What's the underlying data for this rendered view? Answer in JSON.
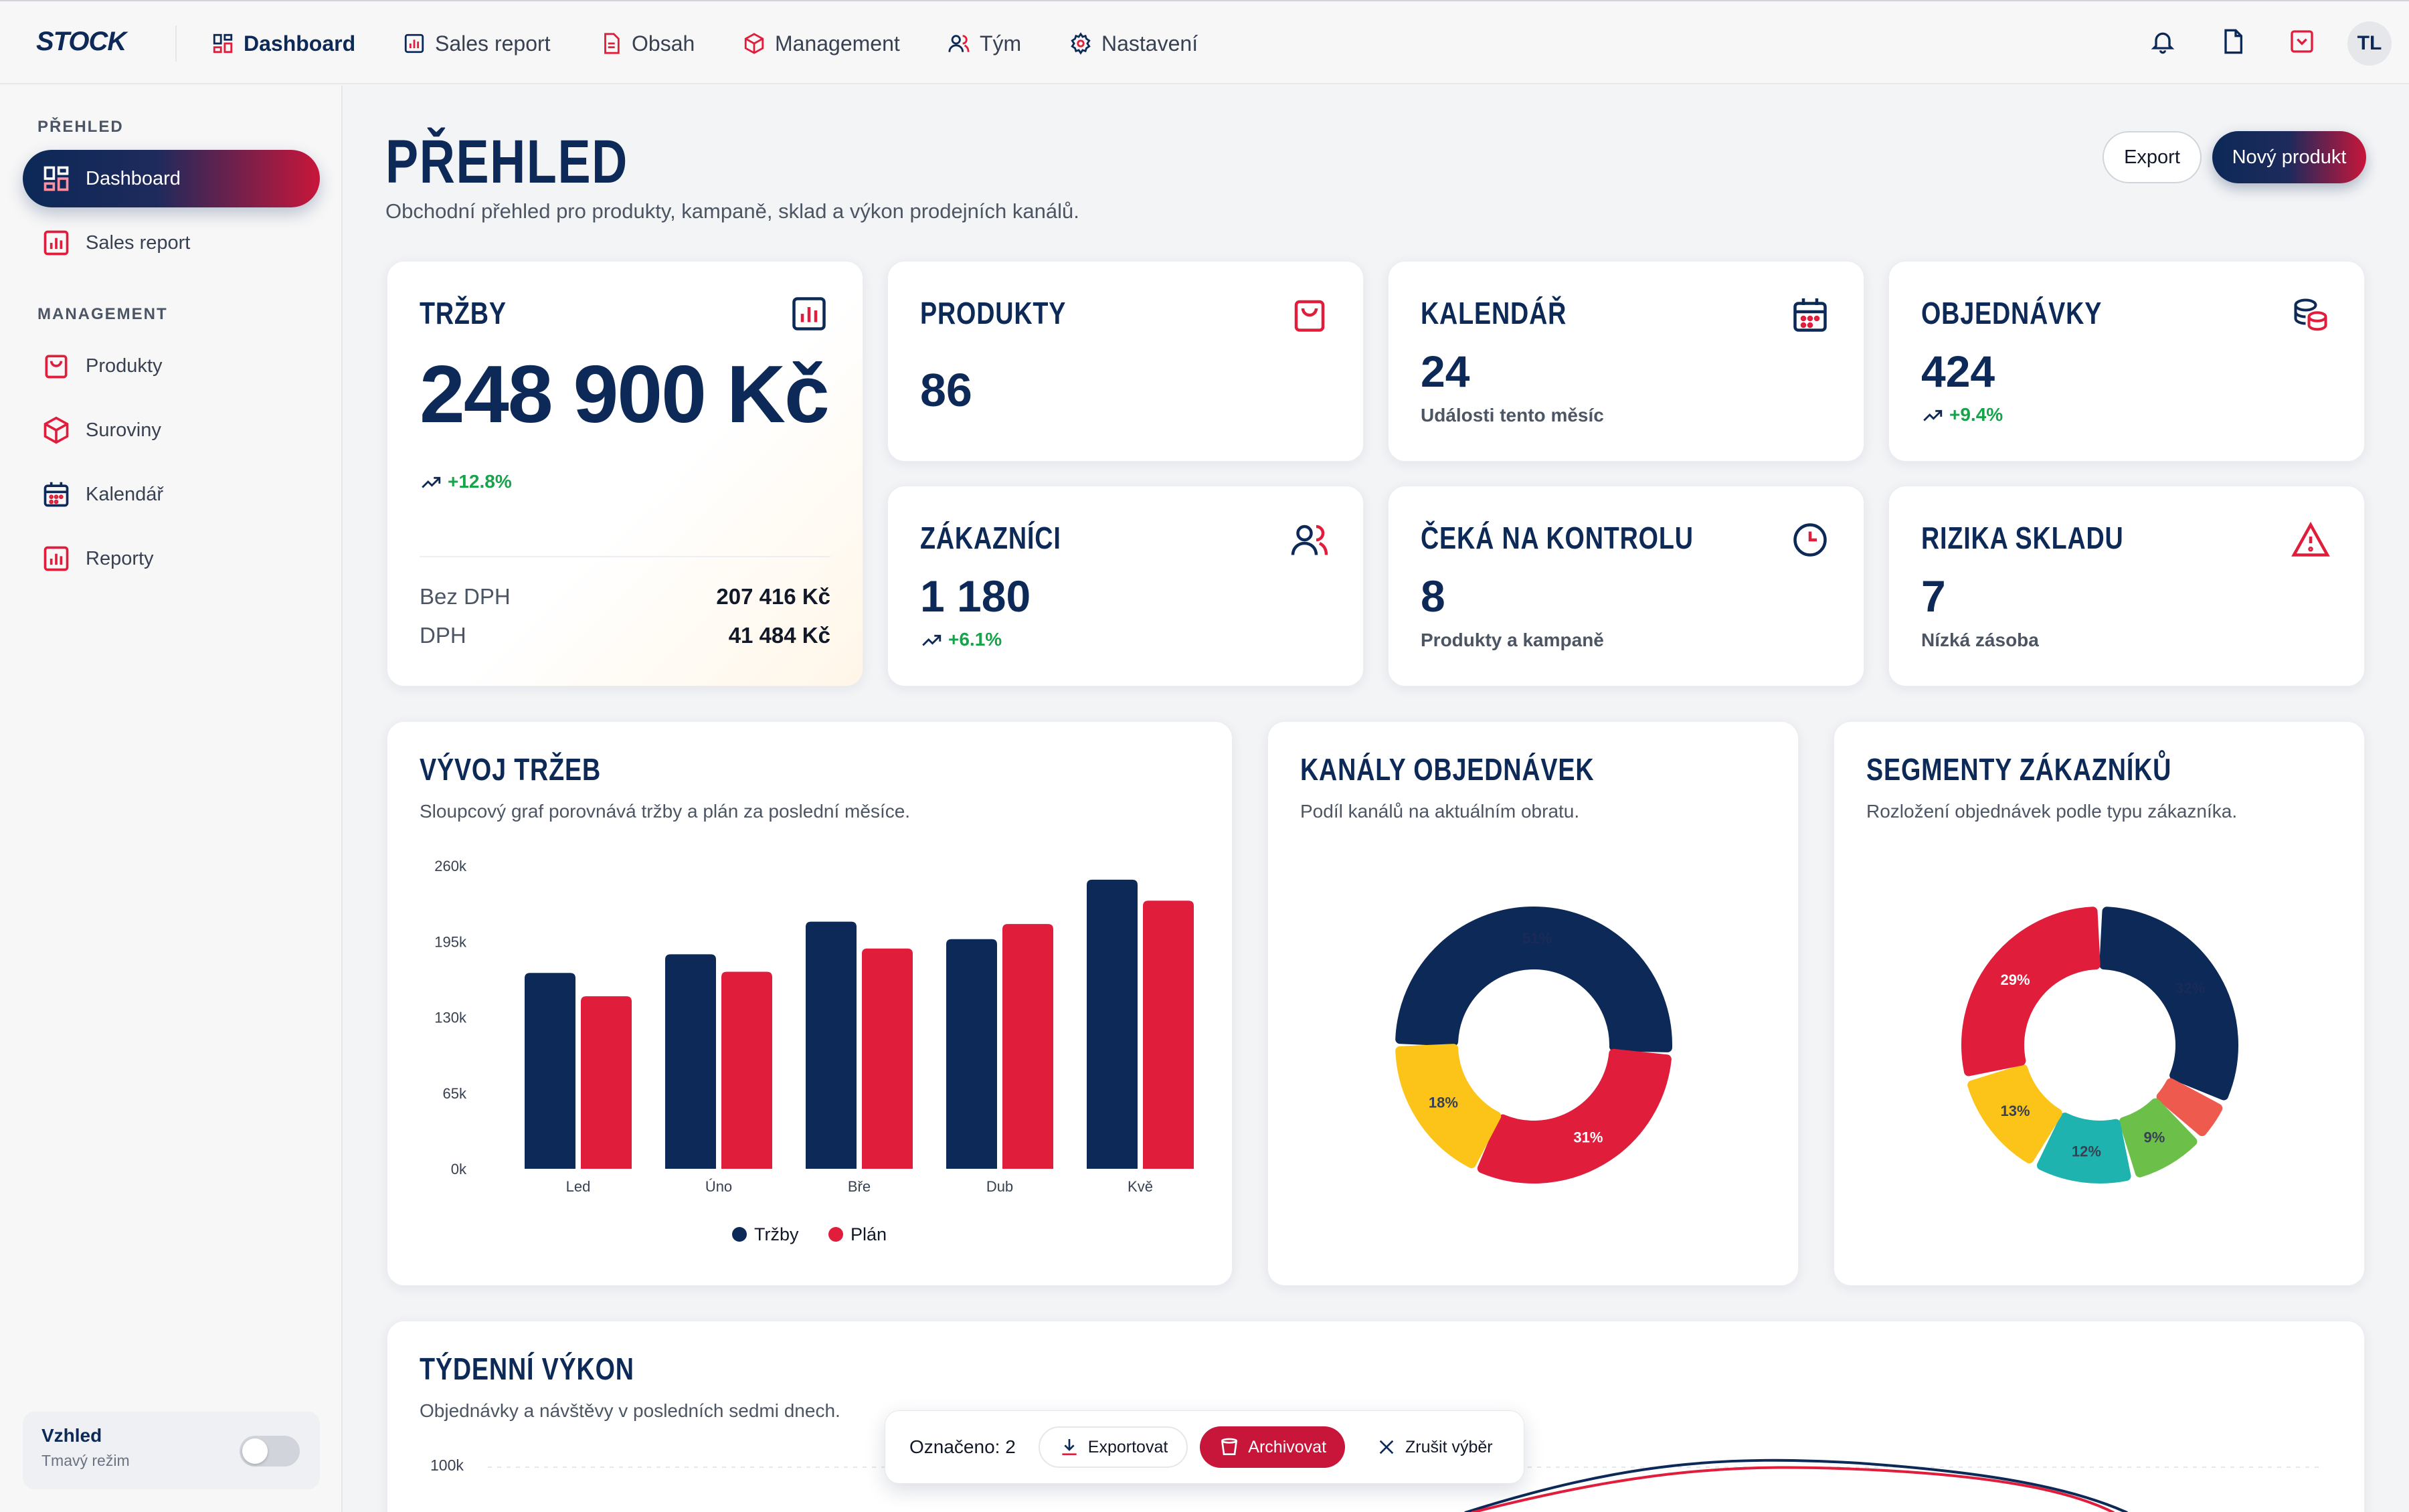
{
  "app": {
    "logo": "STOCK",
    "user_initials": "TL"
  },
  "topnav": [
    {
      "label": "Dashboard",
      "icon": "dashboard-icon",
      "active": true
    },
    {
      "label": "Sales report",
      "icon": "chart-icon"
    },
    {
      "label": "Obsah",
      "icon": "document-icon"
    },
    {
      "label": "Management",
      "icon": "box-icon"
    },
    {
      "label": "Tým",
      "icon": "users-icon"
    },
    {
      "label": "Nastavení",
      "icon": "gear-icon"
    }
  ],
  "sidebar": {
    "section_overview": "PŘEHLED",
    "section_management": "MANAGEMENT",
    "items": [
      {
        "label": "Dashboard",
        "icon": "dashboard-icon",
        "active": true
      },
      {
        "label": "Sales report",
        "icon": "chart-icon"
      },
      {
        "label": "Produkty",
        "icon": "bag-icon"
      },
      {
        "label": "Suroviny",
        "icon": "box-icon"
      },
      {
        "label": "Kalendář",
        "icon": "calendar-icon"
      },
      {
        "label": "Reporty",
        "icon": "chart-icon"
      }
    ],
    "appearance": {
      "title": "Vzhled",
      "subtitle": "Tmavý režim",
      "dark_mode": false
    }
  },
  "header": {
    "title": "PŘEHLED",
    "subtitle": "Obchodní přehled pro produkty, kampaně, sklad a výkon prodejních kanálů.",
    "export_label": "Export",
    "new_label": "Nový produkt"
  },
  "kpi": {
    "revenue": {
      "title": "TRŽBY",
      "value": "248 900 Kč",
      "trend": "+12.8%",
      "net_label": "Bez DPH",
      "net_value": "207 416 Kč",
      "vat_label": "DPH",
      "vat_value": "41 484 Kč"
    },
    "products": {
      "title": "PRODUKTY",
      "value": "86"
    },
    "calendar": {
      "title": "KALENDÁŘ",
      "value": "24",
      "sub": "Události tento měsíc"
    },
    "orders": {
      "title": "OBJEDNÁVKY",
      "value": "424",
      "trend": "+9.4%"
    },
    "customers": {
      "title": "ZÁKAZNÍCI",
      "value": "1 180",
      "trend": "+6.1%"
    },
    "pending": {
      "title": "ČEKÁ NA KONTROLU",
      "value": "8",
      "sub": "Produkty a kampaně"
    },
    "risks": {
      "title": "RIZIKA SKLADU",
      "value": "7",
      "sub": "Nízká zásoba"
    }
  },
  "panels": {
    "revenue_trend": {
      "title": "VÝVOJ TRŽEB",
      "subtitle": "Sloupcový graf porovnává tržby a plán za poslední měsíce."
    },
    "channels": {
      "title": "KANÁLY OBJEDNÁVEK",
      "subtitle": "Podíl kanálů na aktuálním obratu."
    },
    "segments": {
      "title": "SEGMENTY ZÁKAZNÍKŮ",
      "subtitle": "Rozložení objednávek podle typu zákazníka."
    },
    "weekly": {
      "title": "TÝDENNÍ VÝKON",
      "subtitle": "Objednávky a návštěvy v posledních sedmi dnech.",
      "y_top_label": "100k"
    }
  },
  "selection_bar": {
    "count_label": "Označeno: 2",
    "export": "Exportovat",
    "archive": "Archivovat",
    "cancel": "Zrušit výběr"
  },
  "colors": {
    "navy": "#0c2957",
    "red": "#e11d3c",
    "yellow": "#fcc419",
    "teal": "#1fb3b0",
    "green": "#6cc04a",
    "coral": "#ef5a4f",
    "trend_green": "#16a34a"
  },
  "chart_data": [
    {
      "type": "bar",
      "categories": [
        "Led",
        "Úno",
        "Bře",
        "Dub",
        "Kvě"
      ],
      "series": [
        {
          "name": "Tržby",
          "values": [
            168000,
            184000,
            212000,
            197000,
            248000
          ]
        },
        {
          "name": "Plán",
          "values": [
            148000,
            169000,
            189000,
            210000,
            230000
          ]
        }
      ],
      "yticks": [
        "0k",
        "65k",
        "130k",
        "195k",
        "260k"
      ],
      "ylim": [
        0,
        260000
      ],
      "legend": "bottom"
    },
    {
      "type": "pie",
      "labels": [
        "",
        "",
        ""
      ],
      "values": [
        51,
        31,
        18
      ],
      "value_labels": [
        "51%",
        "31%",
        "18%"
      ],
      "colors": [
        "#0c2957",
        "#e11d3c",
        "#fcc419"
      ]
    },
    {
      "type": "pie",
      "labels": [
        "",
        "",
        "",
        "",
        "",
        ""
      ],
      "values": [
        32,
        5,
        9,
        12,
        13,
        29
      ],
      "value_labels": [
        "32%",
        "",
        "9%",
        "12%",
        "13%",
        "29%"
      ],
      "colors": [
        "#0c2957",
        "#ef5a4f",
        "#6cc04a",
        "#1fb3b0",
        "#fcc419",
        "#e11d3c"
      ]
    }
  ]
}
